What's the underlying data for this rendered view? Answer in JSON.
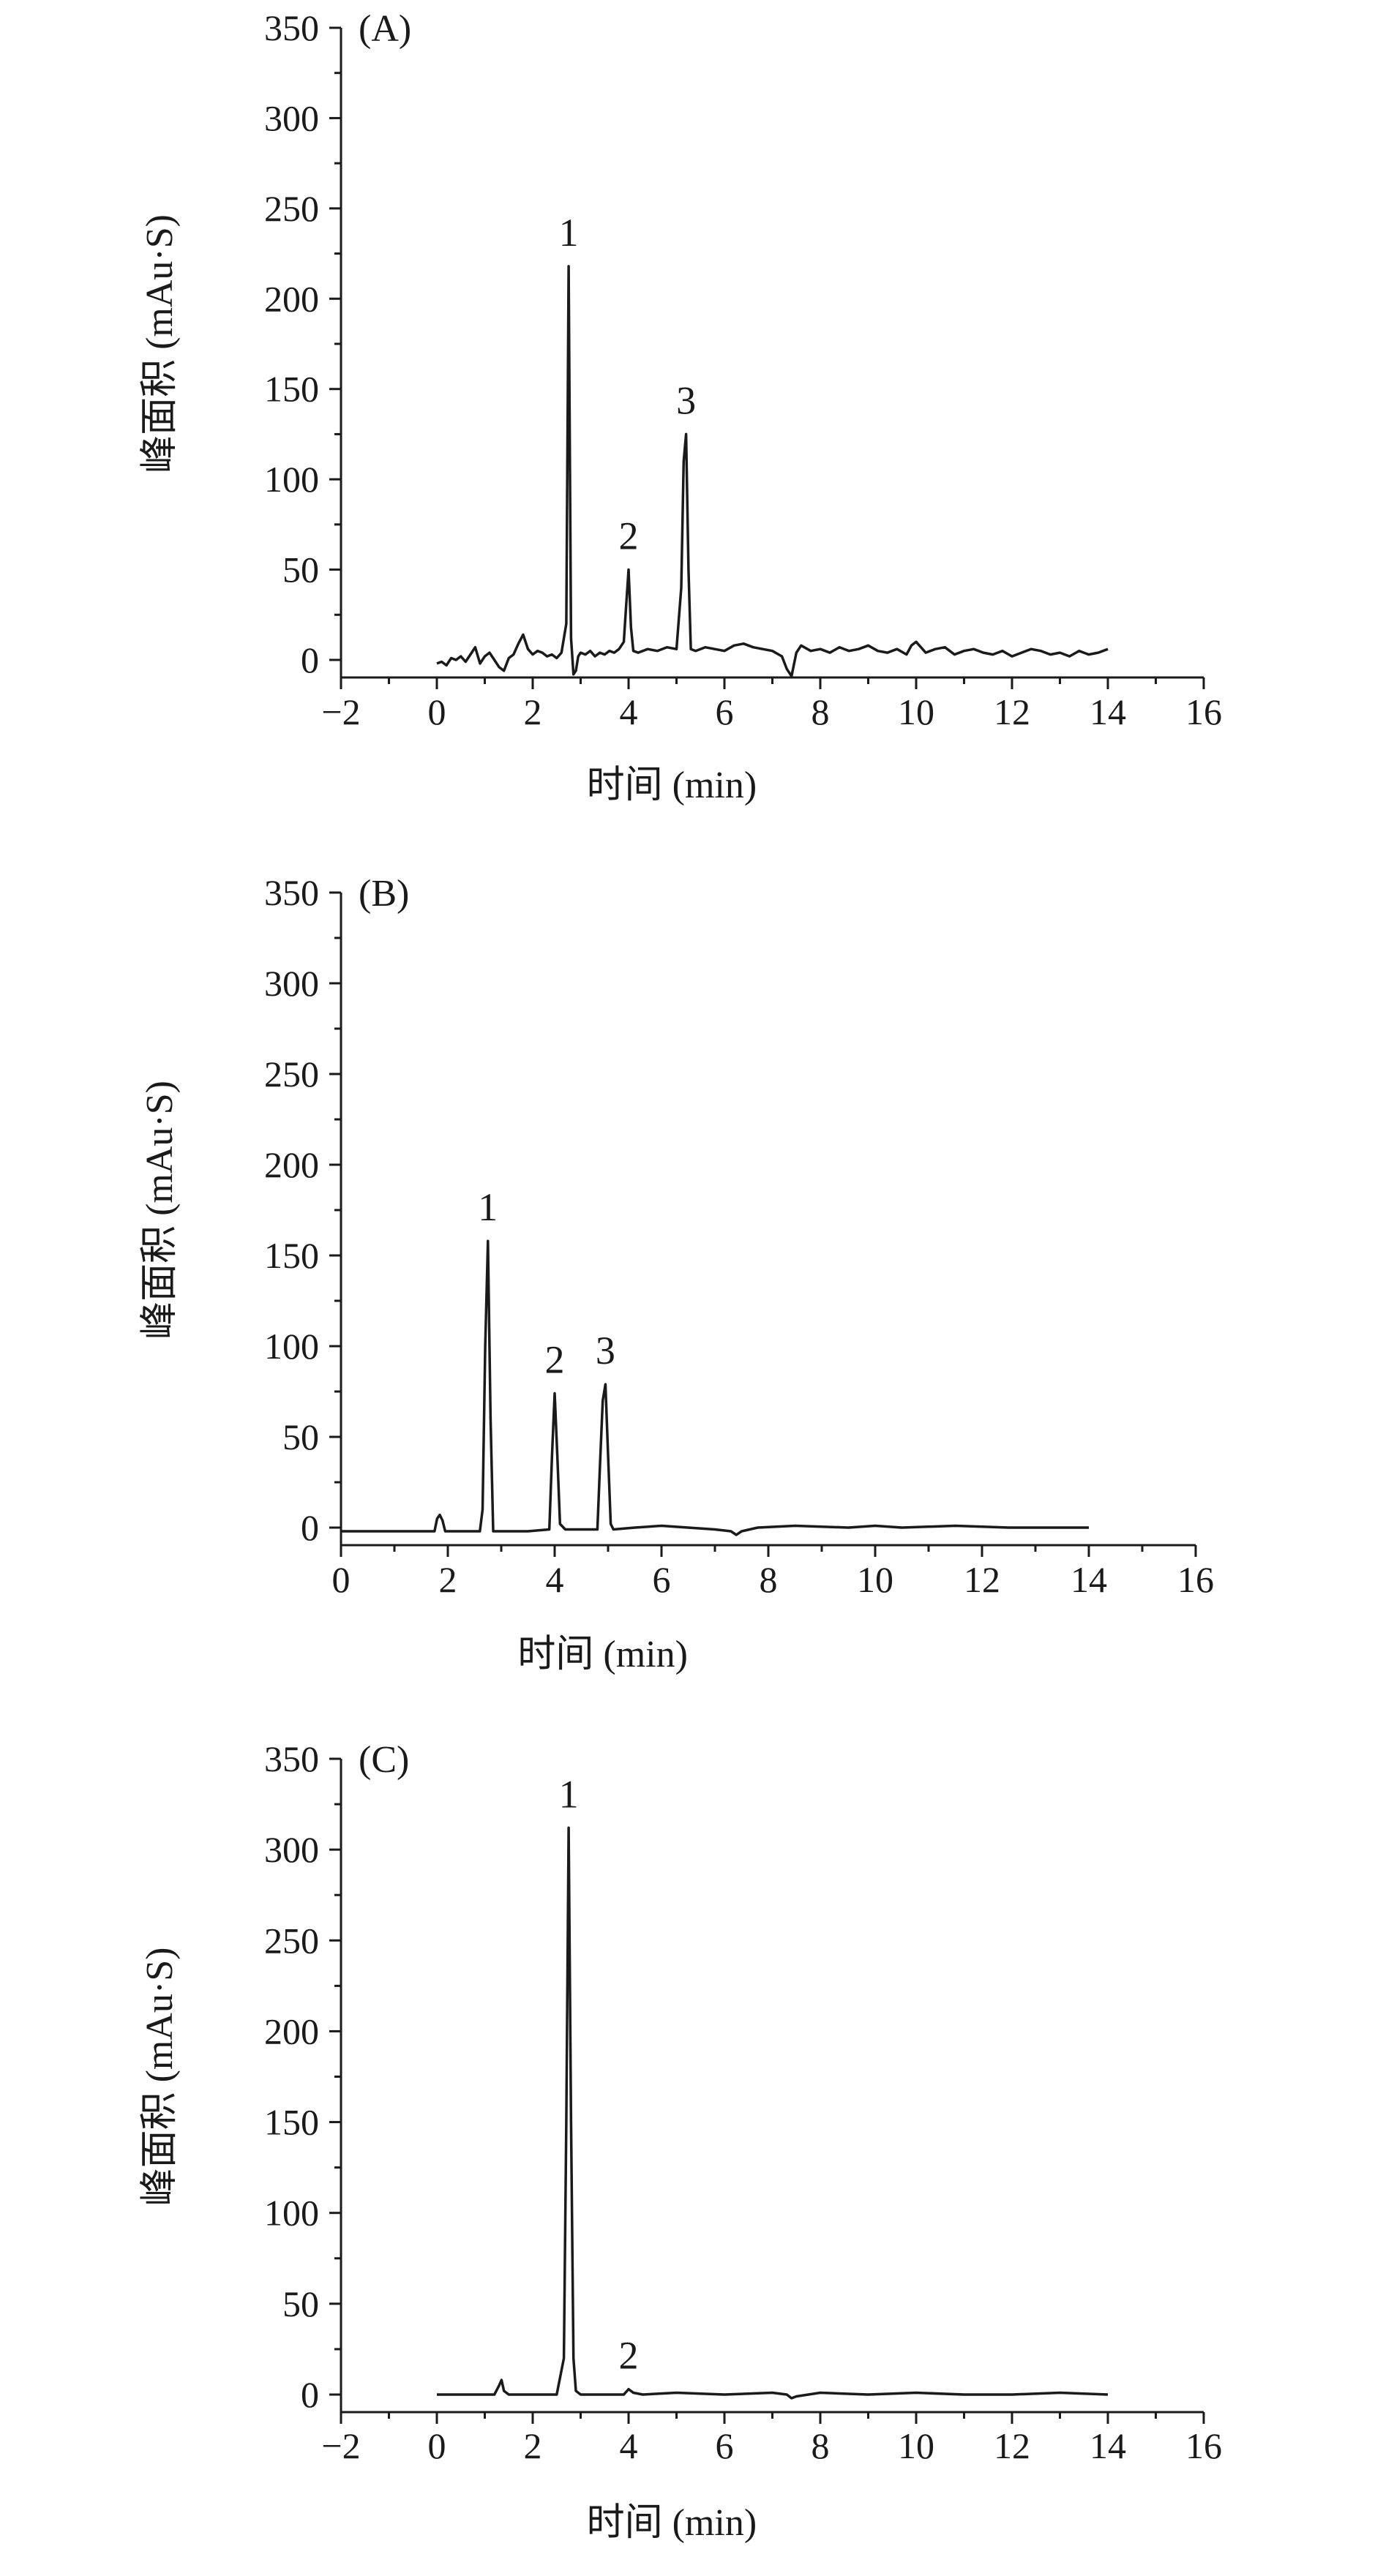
{
  "chart_data": [
    {
      "type": "line",
      "panel_label": "(A)",
      "xlabel": "时间 (min)",
      "ylabel": "峰面积 (mAu·S)",
      "xlim": [
        -2,
        16
      ],
      "ylim": [
        -10,
        350
      ],
      "x_ticks": [
        -2,
        0,
        2,
        4,
        6,
        8,
        10,
        12,
        14,
        16
      ],
      "x_tick_labels": [
        "−2",
        "0",
        "2",
        "4",
        "6",
        "8",
        "10",
        "12",
        "14",
        "16"
      ],
      "y_ticks": [
        0,
        50,
        100,
        150,
        200,
        250,
        300,
        350
      ],
      "y_tick_labels": [
        "0",
        "50",
        "100",
        "150",
        "200",
        "250",
        "300",
        "350"
      ],
      "grid": false,
      "series": [
        {
          "x": [
            0,
            0.1,
            0.2,
            0.3,
            0.4,
            0.5,
            0.6,
            0.7,
            0.8,
            0.9,
            1.0,
            1.1,
            1.2,
            1.3,
            1.4,
            1.5,
            1.6,
            1.7,
            1.8,
            1.9,
            2.0,
            2.1,
            2.2,
            2.3,
            2.4,
            2.5,
            2.6,
            2.7,
            2.75,
            2.8,
            2.85,
            2.9,
            2.95,
            3.0,
            3.1,
            3.2,
            3.3,
            3.4,
            3.5,
            3.6,
            3.7,
            3.8,
            3.9,
            3.95,
            4.0,
            4.05,
            4.1,
            4.2,
            4.4,
            4.6,
            4.8,
            5.0,
            5.1,
            5.15,
            5.2,
            5.25,
            5.3,
            5.4,
            5.6,
            5.8,
            6.0,
            6.2,
            6.4,
            6.6,
            6.8,
            7.0,
            7.2,
            7.3,
            7.4,
            7.5,
            7.6,
            7.8,
            8.0,
            8.2,
            8.4,
            8.6,
            8.8,
            9.0,
            9.2,
            9.4,
            9.6,
            9.8,
            9.9,
            10.0,
            10.2,
            10.4,
            10.6,
            10.8,
            11.0,
            11.2,
            11.4,
            11.6,
            11.8,
            12.0,
            12.2,
            12.4,
            12.6,
            12.8,
            13.0,
            13.2,
            13.4,
            13.6,
            13.8,
            14.0
          ],
          "y": [
            -2,
            -1,
            -3,
            1,
            0,
            2,
            -1,
            3,
            7,
            -2,
            2,
            4,
            0,
            -4,
            -6,
            1,
            3,
            9,
            14,
            6,
            3,
            5,
            4,
            2,
            3,
            1,
            4,
            20,
            218,
            12,
            -8,
            -6,
            2,
            4,
            3,
            5,
            2,
            4,
            3,
            5,
            4,
            6,
            10,
            30,
            50,
            18,
            5,
            4,
            6,
            5,
            7,
            6,
            40,
            110,
            125,
            50,
            6,
            5,
            7,
            6,
            5,
            8,
            9,
            7,
            6,
            5,
            2,
            -5,
            -9,
            4,
            8,
            5,
            6,
            4,
            7,
            5,
            6,
            8,
            5,
            4,
            6,
            3,
            8,
            10,
            4,
            6,
            7,
            3,
            5,
            6,
            4,
            3,
            5,
            2,
            4,
            6,
            5,
            3,
            4,
            2,
            5,
            3,
            4,
            6
          ]
        }
      ],
      "peaks": [
        {
          "label": "1",
          "x": 2.75,
          "y": 218
        },
        {
          "label": "2",
          "x": 4.0,
          "y": 50
        },
        {
          "label": "3",
          "x": 5.2,
          "y": 125
        }
      ]
    },
    {
      "type": "line",
      "panel_label": "(B)",
      "xlabel": "时间 (min)",
      "ylabel": "峰面积 (mAu·S)",
      "xlim": [
        0,
        16
      ],
      "ylim": [
        -10,
        350
      ],
      "x_ticks": [
        0,
        2,
        4,
        6,
        8,
        10,
        12,
        14,
        16
      ],
      "x_tick_labels": [
        "0",
        "2",
        "4",
        "6",
        "8",
        "10",
        "12",
        "14",
        "16"
      ],
      "y_ticks": [
        0,
        50,
        100,
        150,
        200,
        250,
        300,
        350
      ],
      "y_tick_labels": [
        "0",
        "50",
        "100",
        "150",
        "200",
        "250",
        "300",
        "350"
      ],
      "grid": false,
      "series": [
        {
          "x": [
            0,
            0.5,
            1.0,
            1.5,
            1.75,
            1.8,
            1.85,
            1.9,
            1.95,
            2.0,
            2.3,
            2.6,
            2.65,
            2.7,
            2.75,
            2.8,
            2.85,
            2.9,
            3.0,
            3.5,
            3.9,
            3.95,
            4.0,
            4.05,
            4.1,
            4.2,
            4.5,
            4.8,
            4.85,
            4.9,
            4.95,
            5.0,
            5.05,
            5.1,
            5.5,
            6.0,
            6.5,
            7.0,
            7.3,
            7.4,
            7.5,
            7.8,
            8.5,
            9.5,
            10.0,
            10.5,
            11.5,
            12.5,
            13.5,
            14.0
          ],
          "y": [
            -2,
            -2,
            -2,
            -2,
            -2,
            5,
            7,
            4,
            -2,
            -2,
            -2,
            -2,
            10,
            100,
            158,
            60,
            -2,
            -2,
            -2,
            -2,
            -1,
            40,
            74,
            40,
            2,
            -1,
            -1,
            -1,
            35,
            70,
            79,
            40,
            2,
            -1,
            0,
            1,
            0,
            -1,
            -2,
            -4,
            -2,
            0,
            1,
            0,
            1,
            0,
            1,
            0,
            0,
            0
          ]
        }
      ],
      "peaks": [
        {
          "label": "1",
          "x": 2.75,
          "y": 158
        },
        {
          "label": "2",
          "x": 4.0,
          "y": 74
        },
        {
          "label": "3",
          "x": 4.95,
          "y": 79
        }
      ]
    },
    {
      "type": "line",
      "panel_label": "(C)",
      "xlabel": "时间 (min)",
      "ylabel": "峰面积 (mAu·S)",
      "xlim": [
        -2,
        16
      ],
      "ylim": [
        -10,
        350
      ],
      "x_ticks": [
        -2,
        0,
        2,
        4,
        6,
        8,
        10,
        12,
        14,
        16
      ],
      "x_tick_labels": [
        "−2",
        "0",
        "2",
        "4",
        "6",
        "8",
        "10",
        "12",
        "14",
        "16"
      ],
      "y_ticks": [
        0,
        50,
        100,
        150,
        200,
        250,
        300,
        350
      ],
      "y_tick_labels": [
        "0",
        "50",
        "100",
        "150",
        "200",
        "250",
        "300",
        "350"
      ],
      "grid": false,
      "series": [
        {
          "x": [
            0,
            0.5,
            1.0,
            1.2,
            1.3,
            1.35,
            1.4,
            1.5,
            2.0,
            2.5,
            2.65,
            2.7,
            2.75,
            2.8,
            2.85,
            2.9,
            3.0,
            3.5,
            3.9,
            4.0,
            4.1,
            4.3,
            5.0,
            6.0,
            7.0,
            7.3,
            7.4,
            7.5,
            8.0,
            9.0,
            10.0,
            11.0,
            12.0,
            13.0,
            14.0
          ],
          "y": [
            0,
            0,
            0,
            0,
            5,
            8,
            2,
            0,
            0,
            0,
            20,
            150,
            312,
            150,
            20,
            2,
            0,
            0,
            0,
            3,
            1,
            0,
            1,
            0,
            1,
            0,
            -2,
            -1,
            1,
            0,
            1,
            0,
            0,
            1,
            0
          ]
        }
      ],
      "peaks": [
        {
          "label": "1",
          "x": 2.75,
          "y": 312
        },
        {
          "label": "2",
          "x": 4.0,
          "y": 3
        }
      ]
    }
  ]
}
